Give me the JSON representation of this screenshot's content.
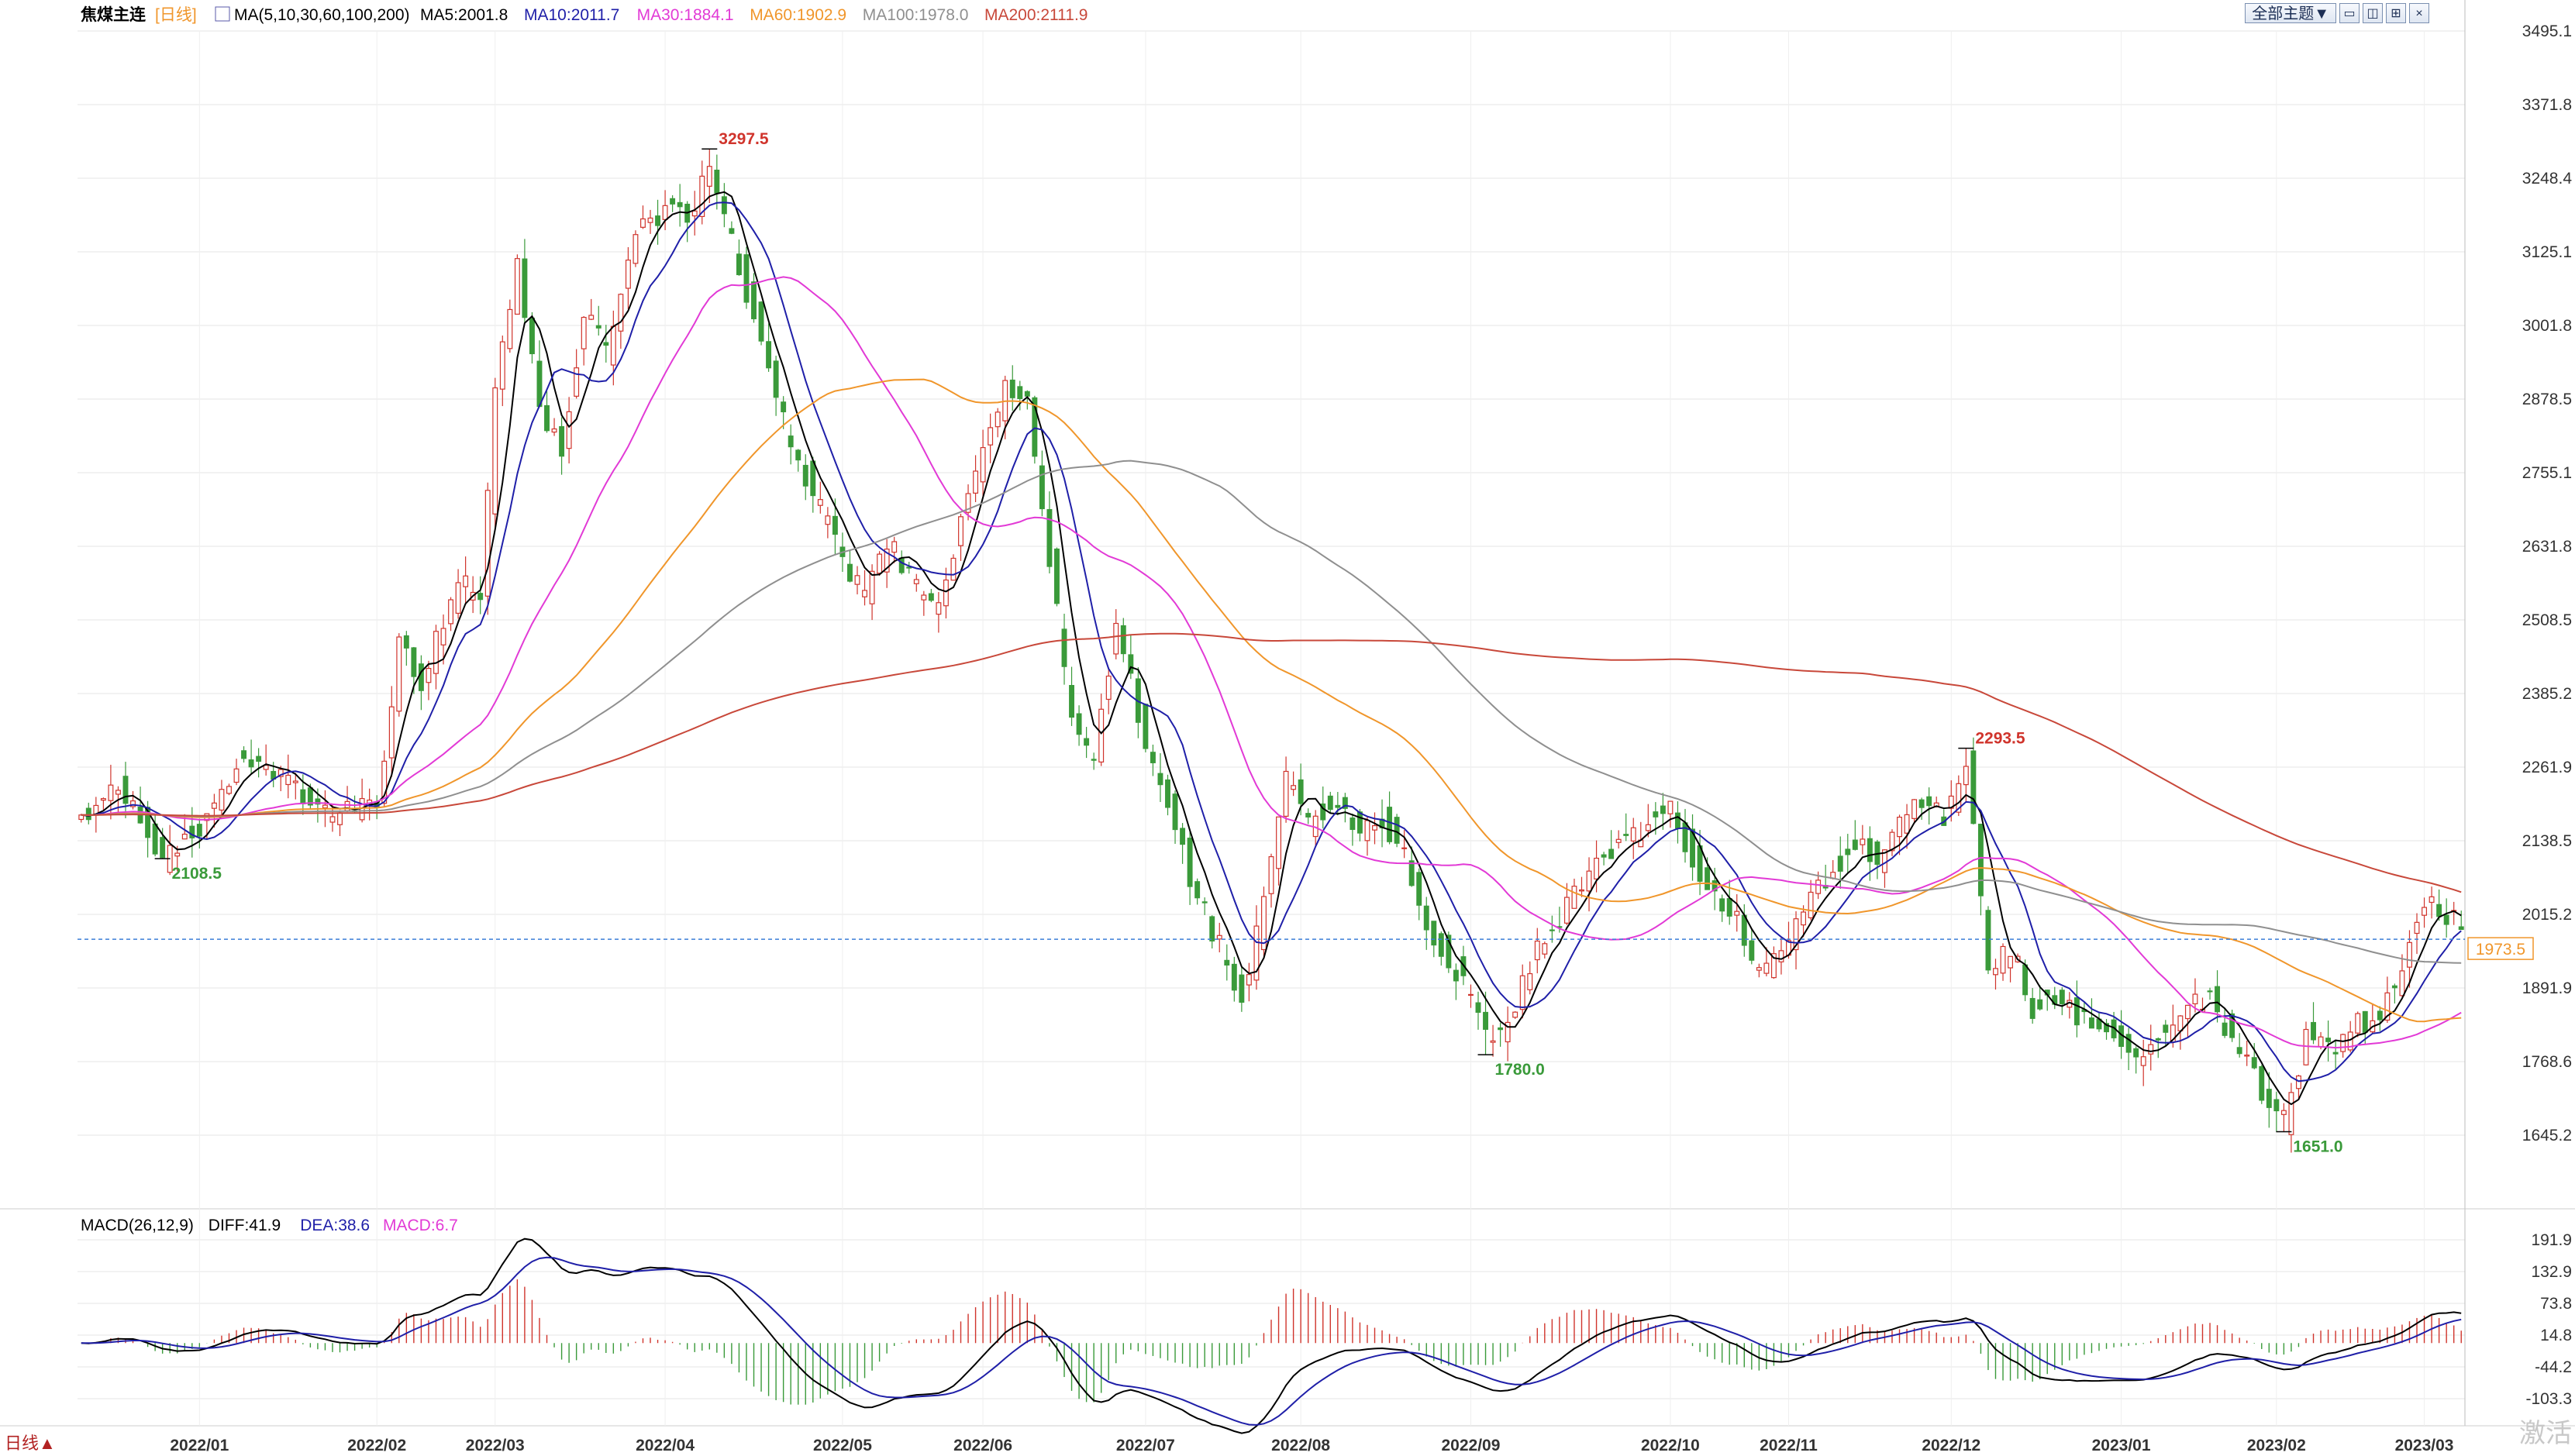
{
  "header": {
    "symbol": "焦煤主连",
    "period": "[日线]",
    "ma_params": "MA(5,10,30,60,100,200)",
    "ma_values": [
      {
        "label": "MA5:2001.8",
        "color": "#000000"
      },
      {
        "label": "MA10:2011.7",
        "color": "#1f1fa8"
      },
      {
        "label": "MA30:1884.1",
        "color": "#e23ad6"
      },
      {
        "label": "MA60:1902.9",
        "color": "#f0962b"
      },
      {
        "label": "MA100:1978.0",
        "color": "#8f8f8f"
      },
      {
        "label": "MA200:2111.9",
        "color": "#c8483a"
      }
    ]
  },
  "toolbar": {
    "theme_label": "全部主题▼",
    "icon_names": [
      "layout-single-icon",
      "layout-split-icon",
      "layout-grid-icon",
      "close-icon"
    ]
  },
  "macd_header": {
    "params": "MACD(26,12,9)",
    "diff": "DIFF:41.9",
    "dea": "DEA:38.6",
    "macd": "MACD:6.7"
  },
  "footer": {
    "period_badge": "日线▲",
    "watermark": "激活"
  },
  "colors": {
    "up": "#d0342c",
    "down": "#3a9a3a",
    "grid": "#e6e6e6",
    "axis_text": "#333333",
    "current_line": "#3b7dd8",
    "current_badge": "#f0962b"
  },
  "chart_data": [
    {
      "type": "candlestick",
      "title": "焦煤主连 [日线]",
      "y_ticks": [
        1645.2,
        1768.6,
        1891.9,
        2015.2,
        2138.5,
        2261.9,
        2385.2,
        2508.5,
        2631.8,
        2755.1,
        2878.5,
        3001.8,
        3125.1,
        3248.4,
        3371.8,
        3495.1
      ],
      "ylim": [
        1645.2,
        3495.1
      ],
      "x_tick_labels": [
        "2022/01",
        "2022/02",
        "2022/03",
        "2022/04",
        "2022/05",
        "2022/06",
        "2022/07",
        "2022/08",
        "2022/09",
        "2022/10",
        "2022/11",
        "2022/12",
        "2023/01",
        "2023/02",
        "2023/03"
      ],
      "x_tick_dates": [
        "2022-01-04",
        "2022-02-07",
        "2022-03-01",
        "2022-04-01",
        "2022-05-05",
        "2022-06-01",
        "2022-07-01",
        "2022-08-01",
        "2022-09-01",
        "2022-10-10",
        "2022-11-01",
        "2022-12-01",
        "2023-01-03",
        "2023-02-01",
        "2023-03-01"
      ],
      "anchors": [
        [
          "2021-12-13",
          2180
        ],
        [
          "2021-12-20",
          2240
        ],
        [
          "2021-12-28",
          2110
        ],
        [
          "2022-01-04",
          2160
        ],
        [
          "2022-01-12",
          2290
        ],
        [
          "2022-01-20",
          2240
        ],
        [
          "2022-01-27",
          2180
        ],
        [
          "2022-02-07",
          2200
        ],
        [
          "2022-02-10",
          2470
        ],
        [
          "2022-02-15",
          2400
        ],
        [
          "2022-02-22",
          2580
        ],
        [
          "2022-02-25",
          2540
        ],
        [
          "2022-03-01",
          2880
        ],
        [
          "2022-03-04",
          3110
        ],
        [
          "2022-03-09",
          2860
        ],
        [
          "2022-03-14",
          2790
        ],
        [
          "2022-03-17",
          3030
        ],
        [
          "2022-03-22",
          2960
        ],
        [
          "2022-03-28",
          3150
        ],
        [
          "2022-04-01",
          3200
        ],
        [
          "2022-04-06",
          3180
        ],
        [
          "2022-04-11",
          3260
        ],
        [
          "2022-04-14",
          3140
        ],
        [
          "2022-04-19",
          3020
        ],
        [
          "2022-04-25",
          2840
        ],
        [
          "2022-04-29",
          2720
        ],
        [
          "2022-05-06",
          2580
        ],
        [
          "2022-05-10",
          2560
        ],
        [
          "2022-05-13",
          2640
        ],
        [
          "2022-05-19",
          2560
        ],
        [
          "2022-05-24",
          2520
        ],
        [
          "2022-05-27",
          2680
        ],
        [
          "2022-06-01",
          2800
        ],
        [
          "2022-06-06",
          2900
        ],
        [
          "2022-06-09",
          2870
        ],
        [
          "2022-06-14",
          2610
        ],
        [
          "2022-06-17",
          2330
        ],
        [
          "2022-06-22",
          2280
        ],
        [
          "2022-06-27",
          2500
        ],
        [
          "2022-07-01",
          2300
        ],
        [
          "2022-07-06",
          2200
        ],
        [
          "2022-07-11",
          2080
        ],
        [
          "2022-07-15",
          1960
        ],
        [
          "2022-07-20",
          1880
        ],
        [
          "2022-07-25",
          2030
        ],
        [
          "2022-07-28",
          2240
        ],
        [
          "2022-08-02",
          2170
        ],
        [
          "2022-08-05",
          2200
        ],
        [
          "2022-08-11",
          2150
        ],
        [
          "2022-08-16",
          2170
        ],
        [
          "2022-08-19",
          2120
        ],
        [
          "2022-08-24",
          2000
        ],
        [
          "2022-08-29",
          1940
        ],
        [
          "2022-09-01",
          1880
        ],
        [
          "2022-09-05",
          1810
        ],
        [
          "2022-09-08",
          1830
        ],
        [
          "2022-09-14",
          1960
        ],
        [
          "2022-09-19",
          2010
        ],
        [
          "2022-09-23",
          2080
        ],
        [
          "2022-09-28",
          2120
        ],
        [
          "2022-10-10",
          2190
        ],
        [
          "2022-10-13",
          2110
        ],
        [
          "2022-10-18",
          2040
        ],
        [
          "2022-10-21",
          2010
        ],
        [
          "2022-10-26",
          1910
        ],
        [
          "2022-10-31",
          1960
        ],
        [
          "2022-11-04",
          2040
        ],
        [
          "2022-11-09",
          2090
        ],
        [
          "2022-11-14",
          2140
        ],
        [
          "2022-11-17",
          2110
        ],
        [
          "2022-11-22",
          2160
        ],
        [
          "2022-11-25",
          2210
        ],
        [
          "2022-11-30",
          2180
        ],
        [
          "2022-12-05",
          2270
        ],
        [
          "2022-12-08",
          1920
        ],
        [
          "2022-12-13",
          1960
        ],
        [
          "2022-12-16",
          1860
        ],
        [
          "2022-12-21",
          1880
        ],
        [
          "2022-12-26",
          1850
        ],
        [
          "2023-01-03",
          1800
        ],
        [
          "2023-01-06",
          1780
        ],
        [
          "2023-01-11",
          1820
        ],
        [
          "2023-01-16",
          1860
        ],
        [
          "2023-01-19",
          1870
        ],
        [
          "2023-01-30",
          1720
        ],
        [
          "2023-02-02",
          1670
        ],
        [
          "2023-02-07",
          1810
        ],
        [
          "2023-02-13",
          1800
        ],
        [
          "2023-02-16",
          1830
        ],
        [
          "2023-02-21",
          1850
        ],
        [
          "2023-02-24",
          1920
        ],
        [
          "2023-02-28",
          2020
        ],
        [
          "2023-03-03",
          2030
        ],
        [
          "2023-03-08",
          1990
        ]
      ],
      "annotations": [
        {
          "date": "2022-04-11",
          "value": 3297.5,
          "label": "3297.5",
          "kind": "high"
        },
        {
          "date": "2021-12-28",
          "value": 2108.5,
          "label": "2108.5",
          "kind": "low"
        },
        {
          "date": "2022-09-05",
          "value": 1780.0,
          "label": "1780.0",
          "kind": "low"
        },
        {
          "date": "2022-12-05",
          "value": 2293.5,
          "label": "2293.5",
          "kind": "high"
        },
        {
          "date": "2023-02-02",
          "value": 1651.0,
          "label": "1651.0",
          "kind": "low"
        }
      ],
      "current_price": 1973.5,
      "current_price_label": "1973.5",
      "series": [
        {
          "name": "MA5",
          "color": "#000000",
          "period": 5
        },
        {
          "name": "MA10",
          "color": "#1f1fa8",
          "period": 10
        },
        {
          "name": "MA30",
          "color": "#e23ad6",
          "period": 30
        },
        {
          "name": "MA60",
          "color": "#f0962b",
          "period": 60
        },
        {
          "name": "MA100",
          "color": "#8f8f8f",
          "period": 100
        },
        {
          "name": "MA200",
          "color": "#c8483a",
          "period": 200
        }
      ]
    },
    {
      "type": "macd",
      "title": "MACD(26,12,9)",
      "y_ticks": [
        -103.3,
        -44.2,
        14.8,
        73.8,
        132.9,
        191.9
      ],
      "ylim": [
        -103.3,
        191.9
      ],
      "series": [
        {
          "name": "DIFF",
          "color": "#000000"
        },
        {
          "name": "DEA",
          "color": "#1f1fa8"
        },
        {
          "name": "MACD",
          "color": "#e23ad6"
        }
      ],
      "last": {
        "DIFF": 41.9,
        "DEA": 38.6,
        "MACD": 6.7
      }
    }
  ]
}
